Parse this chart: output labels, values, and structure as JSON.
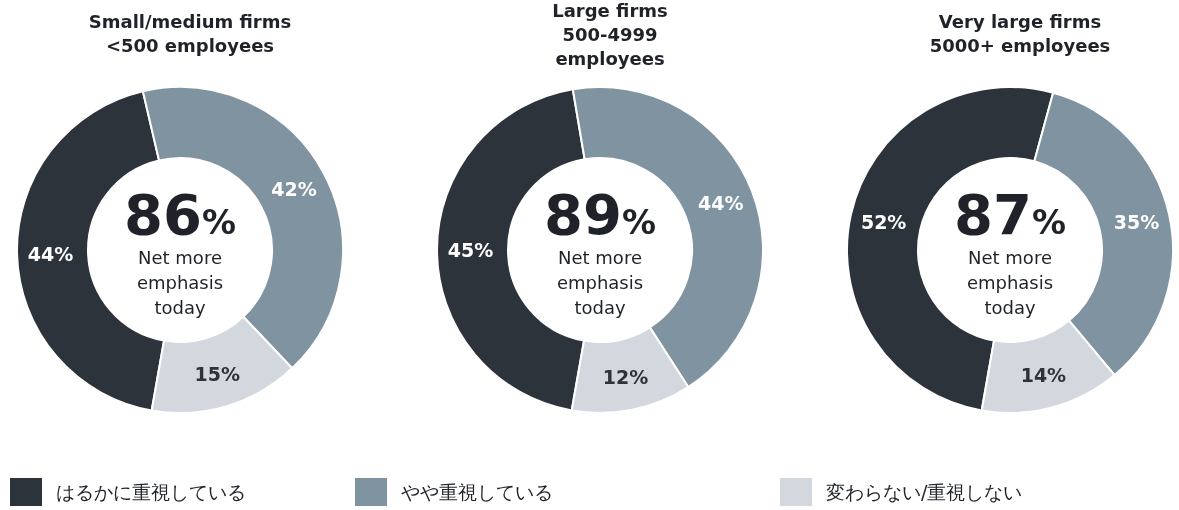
{
  "chart_data": [
    {
      "type": "donut",
      "title": "Small/medium firms\n<500 employees",
      "categories": [
        "はるかに重視している",
        "やや重視している",
        "変わらない/重視しない"
      ],
      "values": [
        44,
        42,
        15
      ],
      "value_labels": [
        "44%",
        "42%",
        "15%"
      ],
      "colors": [
        "#2d333b",
        "#7f93a1",
        "#d3d8de"
      ],
      "legend": "bottom",
      "annotations": [
        "86%",
        "Net more emphasis today"
      ]
    },
    {
      "type": "donut",
      "title": "Large firms\n500-4999\nemployees",
      "categories": [
        null,
        null,
        null
      ],
      "values": [
        45,
        44,
        12
      ],
      "value_labels": [
        "45%",
        "44%",
        "12%"
      ],
      "colors": [
        "#2d333b",
        "#7f93a1",
        "#d3d8de"
      ],
      "annotations": [
        "89%",
        "Net more emphasis today"
      ]
    },
    {
      "type": "donut",
      "title": "Very large firms\n5000+ employees",
      "categories": [
        null,
        null,
        null
      ],
      "values": [
        52,
        35,
        14
      ],
      "value_labels": [
        "52%",
        "35%",
        "14%"
      ],
      "colors": [
        "#2d333b",
        "#7f93a1",
        "#d3d8de"
      ],
      "annotations": [
        "87%",
        "Net more emphasis today"
      ]
    }
  ]
}
